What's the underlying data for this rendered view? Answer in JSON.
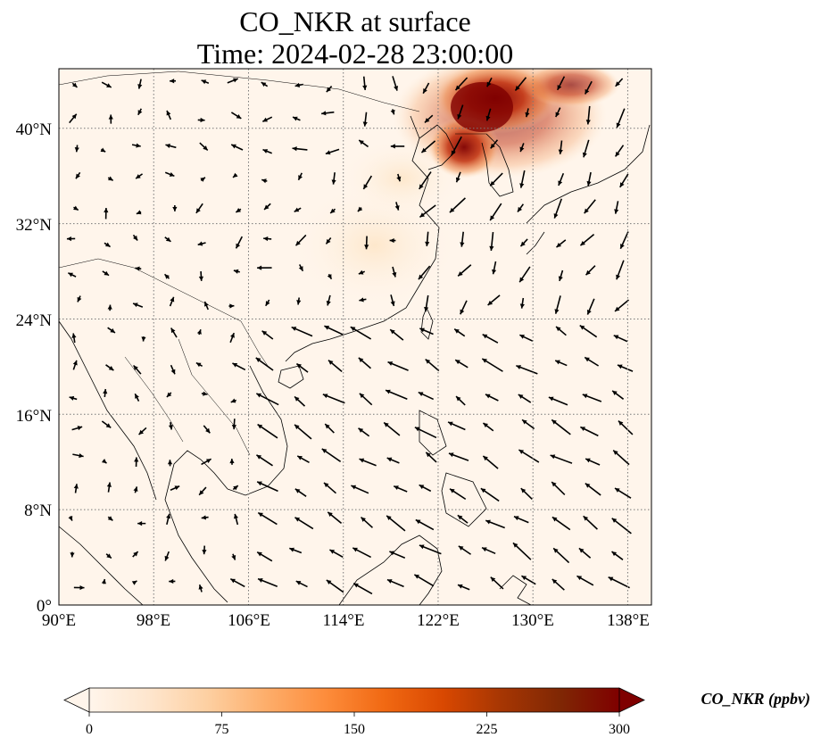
{
  "title": {
    "line1": "CO_NKR at surface",
    "line2": "Time: 2024-02-28 23:00:00"
  },
  "map": {
    "lon_range": [
      90,
      140
    ],
    "lat_range": [
      0,
      45
    ],
    "x_ticks": [
      "90°E",
      "98°E",
      "106°E",
      "114°E",
      "122°E",
      "130°E",
      "138°E"
    ],
    "y_ticks": [
      "0°",
      "8°N",
      "16°N",
      "24°N",
      "32°N",
      "40°N"
    ],
    "gridlines": true,
    "background_color": "#fff5eb",
    "plume_colors": [
      "#fdd9b0",
      "#fb8a3e",
      "#d8481a",
      "#a41406",
      "#7f0000"
    ],
    "vector_color": "#000000"
  },
  "colorbar": {
    "title": "CO_NKR (ppbv)",
    "ticks": [
      "0",
      "75",
      "150",
      "225",
      "300"
    ],
    "range": [
      0,
      300
    ],
    "cmap_stops": [
      "#fff5eb",
      "#fee6ce",
      "#fdd0a2",
      "#fdae6b",
      "#fd8d3c",
      "#f16913",
      "#d94801",
      "#a63603",
      "#7f2704",
      "#7f0000"
    ],
    "extend": "both"
  }
}
